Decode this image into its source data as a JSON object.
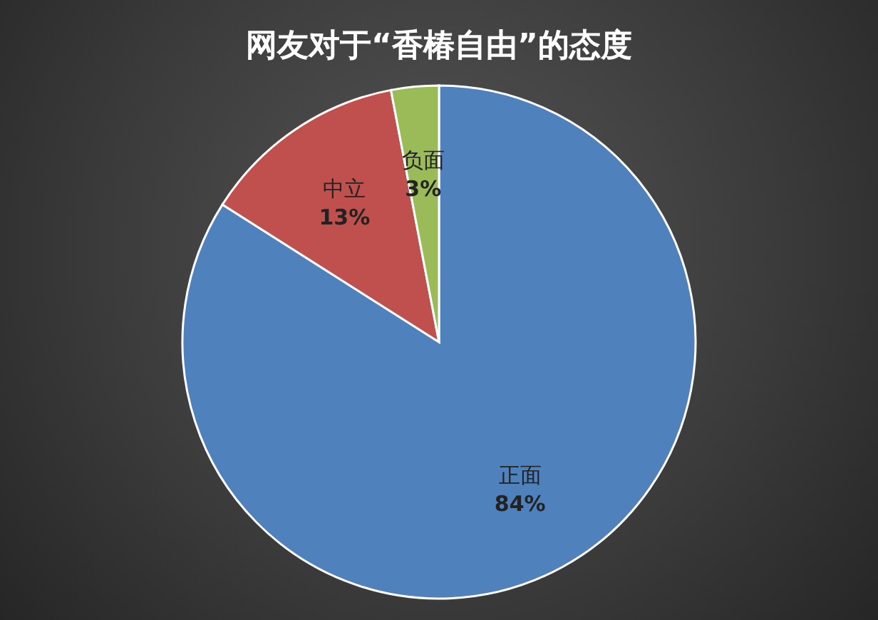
{
  "chart_data": {
    "type": "pie",
    "title": "网友对于“香椿自由”的态度",
    "categories": [
      "正面",
      "中立",
      "负面"
    ],
    "values": [
      84,
      13,
      3
    ],
    "value_labels": [
      "84%",
      "13%",
      "3%"
    ],
    "colors": [
      "#4f81bd",
      "#c0504d",
      "#9bbb59"
    ]
  }
}
